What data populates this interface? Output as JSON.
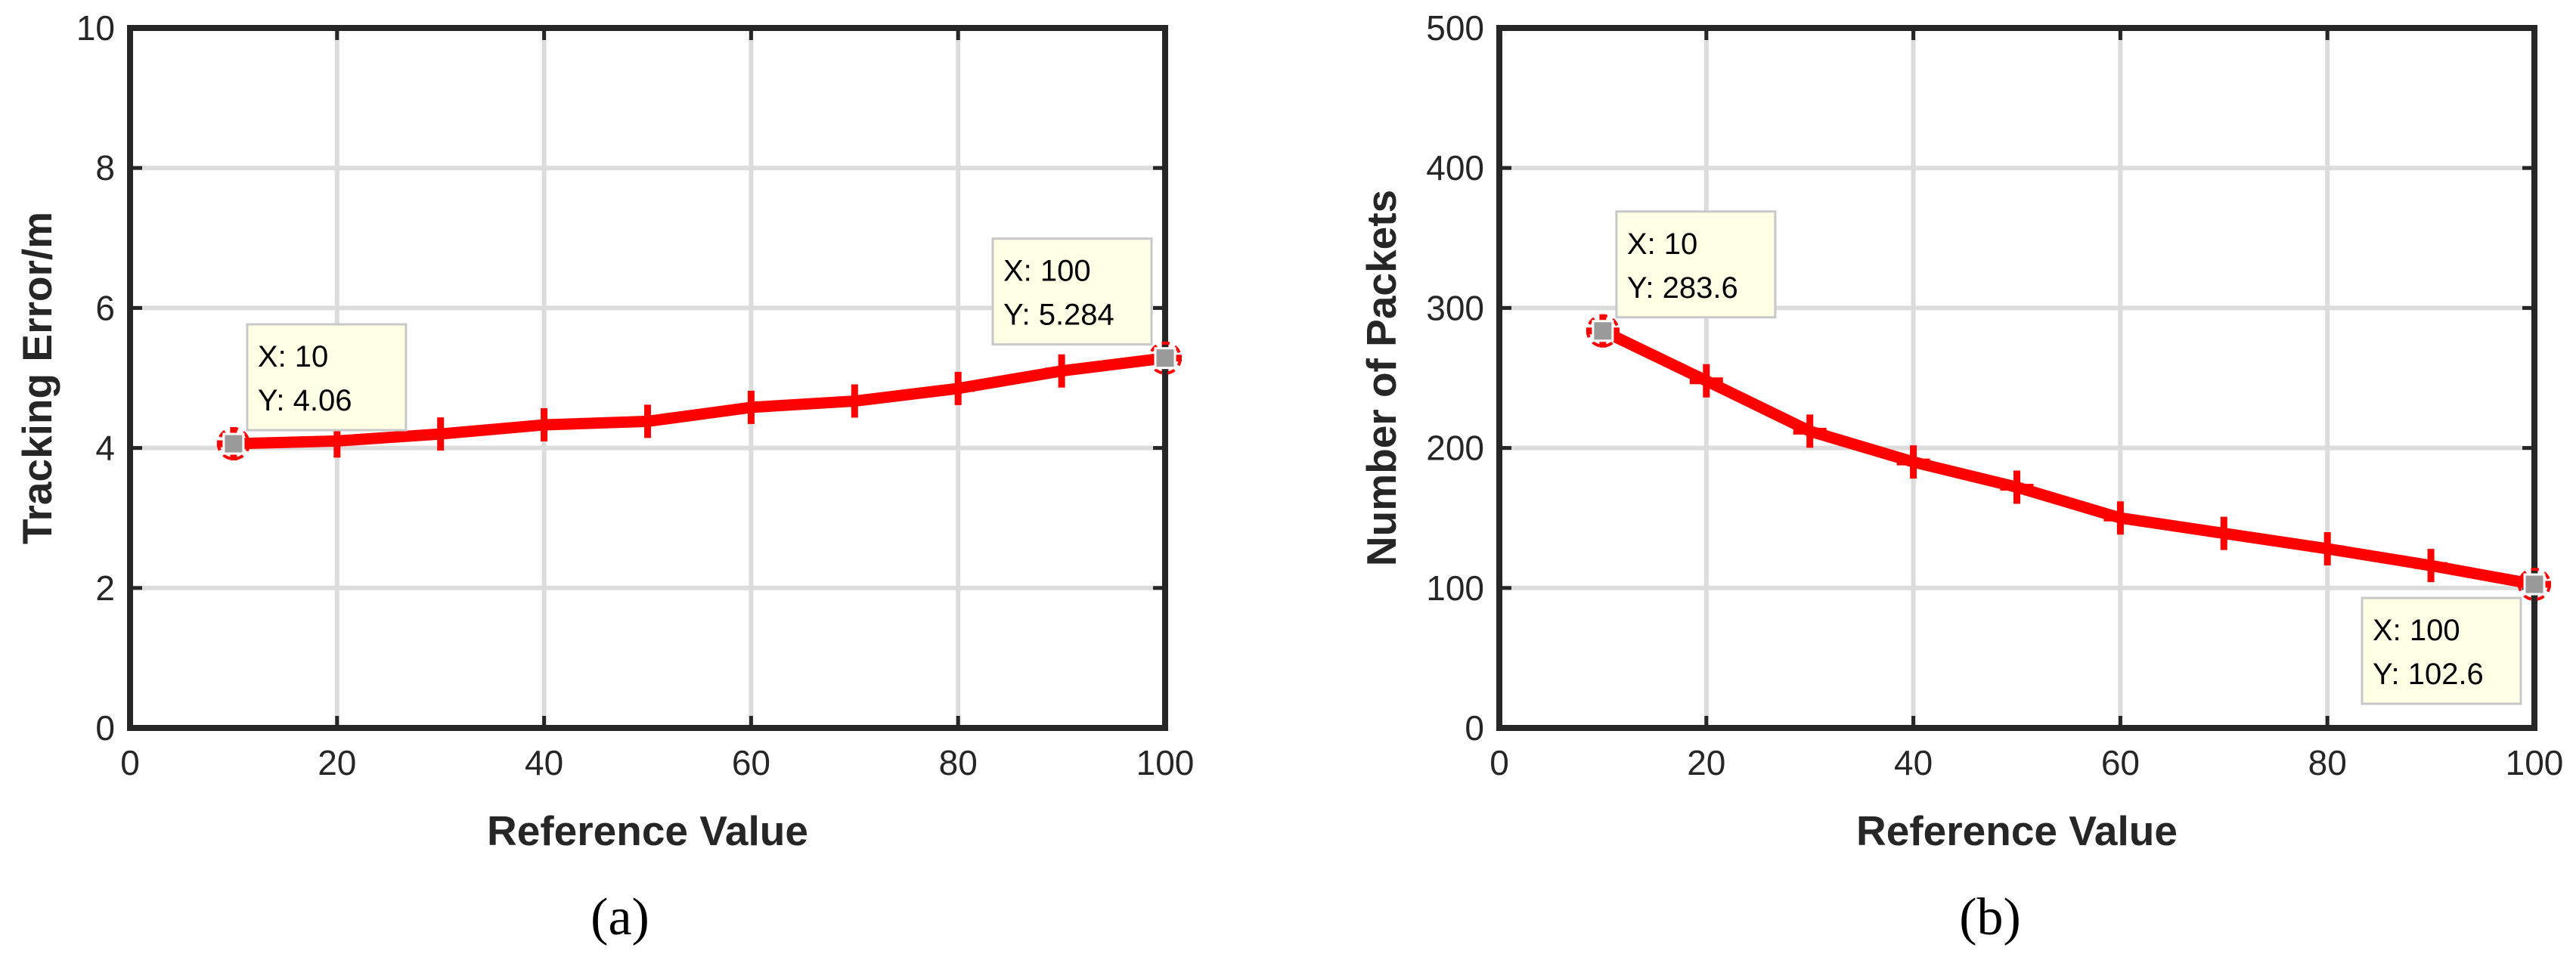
{
  "chart_data": [
    {
      "type": "line",
      "panel_label": "(a)",
      "xlabel": "Reference Value",
      "ylabel": "Tracking Error/m",
      "xlim": [
        0,
        100
      ],
      "ylim": [
        0,
        10
      ],
      "xticks": [
        0,
        20,
        40,
        60,
        80,
        100
      ],
      "yticks": [
        0,
        2,
        4,
        6,
        8,
        10
      ],
      "grid": true,
      "marker": "plus",
      "x": [
        10,
        20,
        30,
        40,
        50,
        60,
        70,
        80,
        90,
        100
      ],
      "series": [
        {
          "values": [
            4.06,
            4.1,
            4.2,
            4.33,
            4.38,
            4.58,
            4.67,
            4.85,
            5.1,
            5.284
          ]
        }
      ],
      "datatips": [
        {
          "x": 10,
          "y": 4.06,
          "line1": "X: 10",
          "line2": "Y: 4.06",
          "placement": "above-right"
        },
        {
          "x": 100,
          "y": 5.284,
          "line1": "X: 100",
          "line2": "Y: 5.284",
          "placement": "above-left"
        }
      ]
    },
    {
      "type": "line",
      "panel_label": "(b)",
      "xlabel": "Reference Value",
      "ylabel": "Number of Packets",
      "xlim": [
        0,
        100
      ],
      "ylim": [
        0,
        500
      ],
      "xticks": [
        0,
        20,
        40,
        60,
        80,
        100
      ],
      "yticks": [
        0,
        100,
        200,
        300,
        400,
        500
      ],
      "grid": true,
      "marker": "plus",
      "x": [
        10,
        20,
        30,
        40,
        50,
        60,
        70,
        80,
        90,
        100
      ],
      "series": [
        {
          "values": [
            283.6,
            248,
            212,
            190,
            172,
            150,
            139,
            128,
            116,
            102.6
          ]
        }
      ],
      "datatips": [
        {
          "x": 10,
          "y": 283.6,
          "line1": "X: 10",
          "line2": "Y: 283.6",
          "placement": "above-right"
        },
        {
          "x": 100,
          "y": 102.6,
          "line1": "X: 100",
          "line2": "Y: 102.6",
          "placement": "below-left"
        }
      ]
    }
  ],
  "colors": {
    "line": "#ff0000",
    "grid": "#dcdcdc",
    "axis": "#262626",
    "tip_background": "#ffffe6",
    "tip_border": "#c8c8c8",
    "tip_marker": "#9a9a9a"
  }
}
